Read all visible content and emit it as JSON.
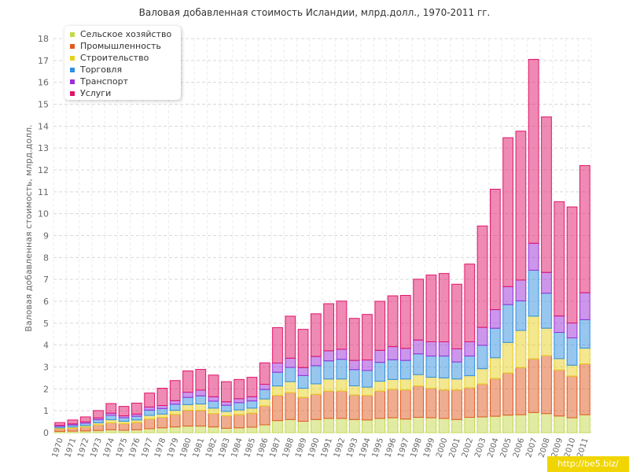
{
  "chart_data": {
    "type": "bar",
    "stacked": true,
    "title": "Валовая добавленная стоимость Исландии, млрд.долл., 1970-2011 гг.",
    "xlabel": "",
    "ylabel": "Валовая добавленная стоимость, млрд.долл.",
    "ylim": [
      0,
      18
    ],
    "yticks": [
      "0",
      "1",
      "2",
      "3",
      "4",
      "5",
      "6",
      "7",
      "8",
      "9",
      "10",
      "11",
      "12",
      "13",
      "14",
      "15",
      "16",
      "17",
      "18"
    ],
    "legend_position": "top-left",
    "categories": [
      "1970",
      "1971",
      "1972",
      "1973",
      "1974",
      "1975",
      "1976",
      "1977",
      "1978",
      "1979",
      "1980",
      "1981",
      "1982",
      "1983",
      "1984",
      "1985",
      "1986",
      "1987",
      "1988",
      "1989",
      "1990",
      "1991",
      "1992",
      "1993",
      "1994",
      "1995",
      "1996",
      "1997",
      "1998",
      "1999",
      "2000",
      "2001",
      "2002",
      "2003",
      "2004",
      "2005",
      "2006",
      "2007",
      "2008",
      "2009",
      "2010",
      "2011"
    ],
    "series": [
      {
        "name": "Сельское хозяйство",
        "color": "#c5d84a",
        "values": [
          0.06,
          0.07,
          0.08,
          0.1,
          0.13,
          0.11,
          0.13,
          0.18,
          0.22,
          0.26,
          0.3,
          0.3,
          0.26,
          0.2,
          0.22,
          0.25,
          0.36,
          0.55,
          0.6,
          0.52,
          0.6,
          0.65,
          0.65,
          0.6,
          0.58,
          0.65,
          0.68,
          0.62,
          0.7,
          0.68,
          0.65,
          0.6,
          0.7,
          0.72,
          0.75,
          0.8,
          0.82,
          0.92,
          0.87,
          0.76,
          0.68,
          0.82
        ]
      },
      {
        "name": "Промышленность",
        "color": "#e05a20",
        "values": [
          0.11,
          0.13,
          0.17,
          0.26,
          0.32,
          0.3,
          0.33,
          0.45,
          0.48,
          0.57,
          0.72,
          0.72,
          0.62,
          0.57,
          0.6,
          0.64,
          0.86,
          1.15,
          1.23,
          1.09,
          1.15,
          1.25,
          1.25,
          1.12,
          1.12,
          1.25,
          1.3,
          1.33,
          1.43,
          1.35,
          1.3,
          1.35,
          1.35,
          1.5,
          1.72,
          1.92,
          2.15,
          2.45,
          2.65,
          2.1,
          1.9,
          2.32
        ]
      },
      {
        "name": "Строительство",
        "color": "#e8d020",
        "values": [
          0.05,
          0.06,
          0.07,
          0.09,
          0.14,
          0.11,
          0.12,
          0.16,
          0.15,
          0.19,
          0.26,
          0.29,
          0.24,
          0.2,
          0.22,
          0.23,
          0.32,
          0.43,
          0.5,
          0.42,
          0.48,
          0.55,
          0.55,
          0.42,
          0.38,
          0.45,
          0.45,
          0.5,
          0.52,
          0.5,
          0.55,
          0.5,
          0.55,
          0.7,
          0.95,
          1.4,
          1.7,
          1.95,
          1.25,
          0.52,
          0.5,
          0.72
        ]
      },
      {
        "name": "Торговля",
        "color": "#2f8fe0",
        "values": [
          0.07,
          0.09,
          0.11,
          0.14,
          0.2,
          0.16,
          0.17,
          0.24,
          0.25,
          0.28,
          0.33,
          0.37,
          0.32,
          0.28,
          0.33,
          0.33,
          0.43,
          0.63,
          0.65,
          0.58,
          0.83,
          0.83,
          0.9,
          0.74,
          0.76,
          0.86,
          0.9,
          0.85,
          0.95,
          0.97,
          1.0,
          0.78,
          0.9,
          1.07,
          1.35,
          1.73,
          1.35,
          2.1,
          1.6,
          1.2,
          1.25,
          1.3
        ]
      },
      {
        "name": "Транспорт",
        "color": "#9a30d8",
        "values": [
          0.04,
          0.05,
          0.06,
          0.08,
          0.1,
          0.09,
          0.1,
          0.14,
          0.14,
          0.16,
          0.24,
          0.26,
          0.2,
          0.16,
          0.18,
          0.19,
          0.24,
          0.42,
          0.42,
          0.36,
          0.42,
          0.46,
          0.46,
          0.42,
          0.48,
          0.55,
          0.6,
          0.55,
          0.63,
          0.65,
          0.65,
          0.6,
          0.65,
          0.82,
          0.85,
          0.82,
          0.95,
          1.23,
          0.95,
          0.75,
          0.68,
          1.23
        ]
      },
      {
        "name": "Услуги",
        "color": "#e0156a",
        "values": [
          0.13,
          0.18,
          0.23,
          0.34,
          0.44,
          0.43,
          0.5,
          0.64,
          0.79,
          0.92,
          0.97,
          0.95,
          0.99,
          0.92,
          0.88,
          0.89,
          0.98,
          1.62,
          1.92,
          1.75,
          1.95,
          2.15,
          2.2,
          1.92,
          2.08,
          2.24,
          2.32,
          2.42,
          2.78,
          3.05,
          3.12,
          2.95,
          3.55,
          4.63,
          5.5,
          6.8,
          6.8,
          8.4,
          7.1,
          5.22,
          5.3,
          5.81
        ]
      }
    ]
  },
  "watermark": "http://be5.biz/"
}
